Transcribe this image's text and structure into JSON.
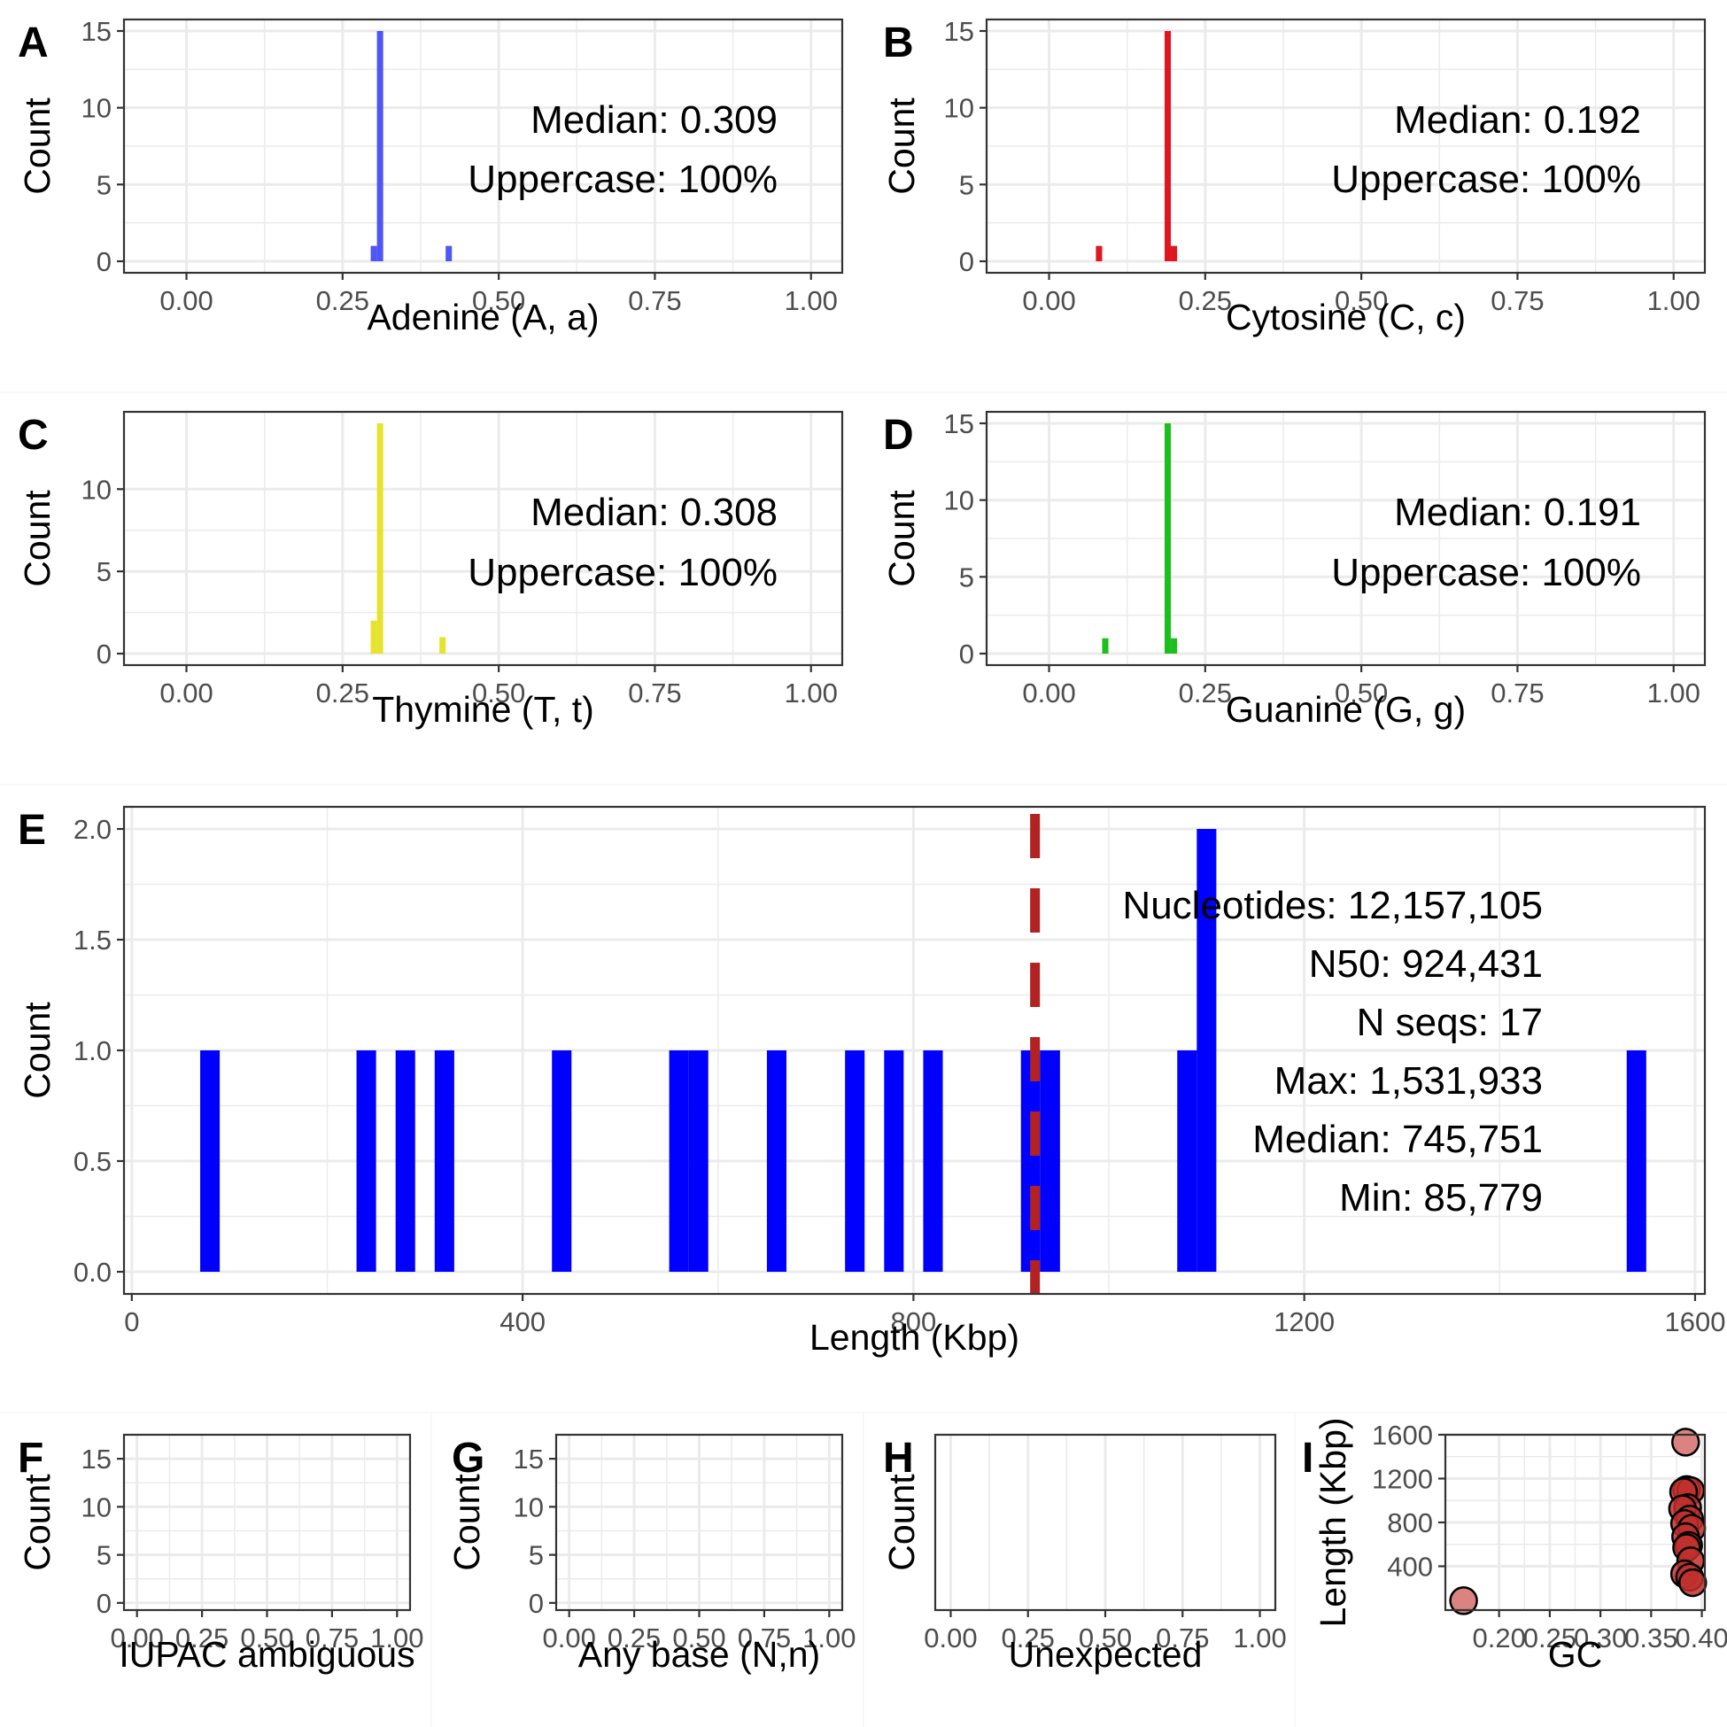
{
  "colors": {
    "adenine": "#4f56f5",
    "cytosine": "#e0161f",
    "thymine": "#e6e32e",
    "guanine": "#1dbf1d",
    "length_bars": "#0000ff",
    "n50_line": "#b22222",
    "gc_points": "#c0302d",
    "gc_point_low": "#d36d6b",
    "grid": "#ebebeb",
    "axis": "#333333"
  },
  "chart_data": [
    {
      "id": "A",
      "panel_label": "A",
      "type": "bar",
      "xlabel": "Adenine (A, a)",
      "ylabel": "Count",
      "xlim": [
        -0.1,
        1.05
      ],
      "ylim": [
        -0.75,
        15.75
      ],
      "xticks": [
        0,
        0.25,
        0.5,
        0.75,
        1
      ],
      "xtick_labels": [
        "0.00",
        "0.25",
        "0.50",
        "0.75",
        "1.00"
      ],
      "yticks": [
        0,
        5,
        10,
        15
      ],
      "ytick_labels": [
        "0",
        "5",
        "10",
        "15"
      ],
      "bin_width": 0.01,
      "bins": [
        {
          "x": 0.3,
          "y": 1
        },
        {
          "x": 0.31,
          "y": 15
        },
        {
          "x": 0.42,
          "y": 1
        }
      ],
      "color_key": "adenine",
      "annotations": [
        "Median: 0.309",
        "Uppercase: 100%"
      ]
    },
    {
      "id": "B",
      "panel_label": "B",
      "type": "bar",
      "xlabel": "Cytosine (C, c)",
      "ylabel": "Count",
      "xlim": [
        -0.1,
        1.05
      ],
      "ylim": [
        -0.75,
        15.75
      ],
      "xticks": [
        0,
        0.25,
        0.5,
        0.75,
        1
      ],
      "xtick_labels": [
        "0.00",
        "0.25",
        "0.50",
        "0.75",
        "1.00"
      ],
      "yticks": [
        0,
        5,
        10,
        15
      ],
      "ytick_labels": [
        "0",
        "5",
        "10",
        "15"
      ],
      "bin_width": 0.01,
      "bins": [
        {
          "x": 0.08,
          "y": 1
        },
        {
          "x": 0.19,
          "y": 15
        },
        {
          "x": 0.2,
          "y": 1
        }
      ],
      "color_key": "cytosine",
      "annotations": [
        "Median: 0.192",
        "Uppercase: 100%"
      ]
    },
    {
      "id": "C",
      "panel_label": "C",
      "type": "bar",
      "xlabel": "Thymine (T, t)",
      "ylabel": "Count",
      "xlim": [
        -0.1,
        1.05
      ],
      "ylim": [
        -0.7,
        14.7
      ],
      "xticks": [
        0,
        0.25,
        0.5,
        0.75,
        1
      ],
      "xtick_labels": [
        "0.00",
        "0.25",
        "0.50",
        "0.75",
        "1.00"
      ],
      "yticks": [
        0,
        5,
        10
      ],
      "ytick_labels": [
        "0",
        "5",
        "10"
      ],
      "bin_width": 0.01,
      "bins": [
        {
          "x": 0.3,
          "y": 2
        },
        {
          "x": 0.31,
          "y": 14
        },
        {
          "x": 0.41,
          "y": 1
        }
      ],
      "color_key": "thymine",
      "annotations": [
        "Median: 0.308",
        "Uppercase: 100%"
      ]
    },
    {
      "id": "D",
      "panel_label": "D",
      "type": "bar",
      "xlabel": "Guanine (G, g)",
      "ylabel": "Count",
      "xlim": [
        -0.1,
        1.05
      ],
      "ylim": [
        -0.75,
        15.75
      ],
      "xticks": [
        0,
        0.25,
        0.5,
        0.75,
        1
      ],
      "xtick_labels": [
        "0.00",
        "0.25",
        "0.50",
        "0.75",
        "1.00"
      ],
      "yticks": [
        0,
        5,
        10,
        15
      ],
      "ytick_labels": [
        "0",
        "5",
        "10",
        "15"
      ],
      "bin_width": 0.01,
      "bins": [
        {
          "x": 0.09,
          "y": 1
        },
        {
          "x": 0.19,
          "y": 15
        },
        {
          "x": 0.2,
          "y": 1
        }
      ],
      "color_key": "guanine",
      "annotations": [
        "Median: 0.191",
        "Uppercase: 100%"
      ]
    },
    {
      "id": "E",
      "panel_label": "E",
      "type": "bar",
      "xlabel": "Length (Kbp)",
      "ylabel": "Count",
      "xlim": [
        -8,
        1610
      ],
      "ylim": [
        -0.1,
        2.1
      ],
      "xticks": [
        0,
        400,
        800,
        1200,
        1600
      ],
      "xtick_labels": [
        "0",
        "400",
        "800",
        "1200",
        "1600"
      ],
      "yticks": [
        0,
        0.5,
        1,
        1.5,
        2
      ],
      "ytick_labels": [
        "0.0",
        "0.5",
        "1.0",
        "1.5",
        "2.0"
      ],
      "bin_width": 20,
      "bins": [
        {
          "x": 80,
          "y": 1
        },
        {
          "x": 240,
          "y": 1
        },
        {
          "x": 280,
          "y": 1
        },
        {
          "x": 320,
          "y": 1
        },
        {
          "x": 440,
          "y": 1
        },
        {
          "x": 560,
          "y": 1
        },
        {
          "x": 580,
          "y": 1
        },
        {
          "x": 660,
          "y": 1
        },
        {
          "x": 740,
          "y": 1
        },
        {
          "x": 780,
          "y": 1
        },
        {
          "x": 820,
          "y": 1
        },
        {
          "x": 920,
          "y": 1
        },
        {
          "x": 940,
          "y": 1
        },
        {
          "x": 1080,
          "y": 1
        },
        {
          "x": 1100,
          "y": 2
        },
        {
          "x": 1540,
          "y": 1
        }
      ],
      "color_key": "length_bars",
      "vline": {
        "x": 924.431,
        "label": "N50",
        "color_key": "n50_line"
      },
      "annotations": [
        "Nucleotides: 12,157,105",
        "N50: 924,431",
        "N seqs: 17",
        "Max: 1,531,933",
        "Median: 745,751",
        "Min: 85,779"
      ]
    },
    {
      "id": "F",
      "panel_label": "F",
      "type": "bar",
      "xlabel": "IUPAC ambiguous",
      "ylabel": "Count",
      "xlim": [
        -0.05,
        1.05
      ],
      "ylim": [
        -0.75,
        17.5
      ],
      "xticks": [
        0,
        0.25,
        0.5,
        0.75,
        1
      ],
      "xtick_labels": [
        "0.00",
        "0.25",
        "0.50",
        "0.75",
        "1.00"
      ],
      "yticks": [
        0,
        5,
        10,
        15
      ],
      "ytick_labels": [
        "0",
        "5",
        "10",
        "15"
      ],
      "bins": []
    },
    {
      "id": "G",
      "panel_label": "G",
      "type": "bar",
      "xlabel": "Any base (N,n)",
      "ylabel": "Count",
      "xlim": [
        -0.05,
        1.05
      ],
      "ylim": [
        -0.75,
        17.5
      ],
      "xticks": [
        0,
        0.25,
        0.5,
        0.75,
        1
      ],
      "xtick_labels": [
        "0.00",
        "0.25",
        "0.50",
        "0.75",
        "1.00"
      ],
      "yticks": [
        0,
        5,
        10,
        15
      ],
      "ytick_labels": [
        "0",
        "5",
        "10",
        "15"
      ],
      "bins": []
    },
    {
      "id": "H",
      "panel_label": "H",
      "type": "bar",
      "xlabel": "Unexpected",
      "ylabel": "Count",
      "xlim": [
        -0.05,
        1.05
      ],
      "ylim": [
        0,
        1
      ],
      "xticks": [
        0,
        0.25,
        0.5,
        0.75,
        1
      ],
      "xtick_labels": [
        "0.00",
        "0.25",
        "0.50",
        "0.75",
        "1.00"
      ],
      "yticks": [],
      "ytick_labels": [],
      "bins": []
    },
    {
      "id": "I",
      "panel_label": "I",
      "type": "scatter",
      "xlabel": "GC",
      "ylabel": "Length (Kbp)",
      "xlim": [
        0.147,
        0.403
      ],
      "ylim": [
        0,
        1600
      ],
      "xticks": [
        0.2,
        0.25,
        0.3,
        0.35,
        0.4
      ],
      "xtick_labels": [
        "0.20",
        "0.25",
        "0.30",
        "0.35",
        "0.40"
      ],
      "yticks": [
        400,
        800,
        1200,
        1600
      ],
      "ytick_labels": [
        "400",
        "800",
        "1200",
        "1600"
      ],
      "points": [
        {
          "x": 0.165,
          "y": 86
        },
        {
          "x": 0.384,
          "y": 1532
        },
        {
          "x": 0.385,
          "y": 1100
        },
        {
          "x": 0.389,
          "y": 1090
        },
        {
          "x": 0.382,
          "y": 1080
        },
        {
          "x": 0.386,
          "y": 935
        },
        {
          "x": 0.381,
          "y": 924
        },
        {
          "x": 0.388,
          "y": 830
        },
        {
          "x": 0.383,
          "y": 790
        },
        {
          "x": 0.39,
          "y": 746
        },
        {
          "x": 0.384,
          "y": 670
        },
        {
          "x": 0.387,
          "y": 590
        },
        {
          "x": 0.385,
          "y": 570
        },
        {
          "x": 0.389,
          "y": 450
        },
        {
          "x": 0.383,
          "y": 330
        },
        {
          "x": 0.388,
          "y": 300
        },
        {
          "x": 0.391,
          "y": 250
        }
      ]
    }
  ]
}
